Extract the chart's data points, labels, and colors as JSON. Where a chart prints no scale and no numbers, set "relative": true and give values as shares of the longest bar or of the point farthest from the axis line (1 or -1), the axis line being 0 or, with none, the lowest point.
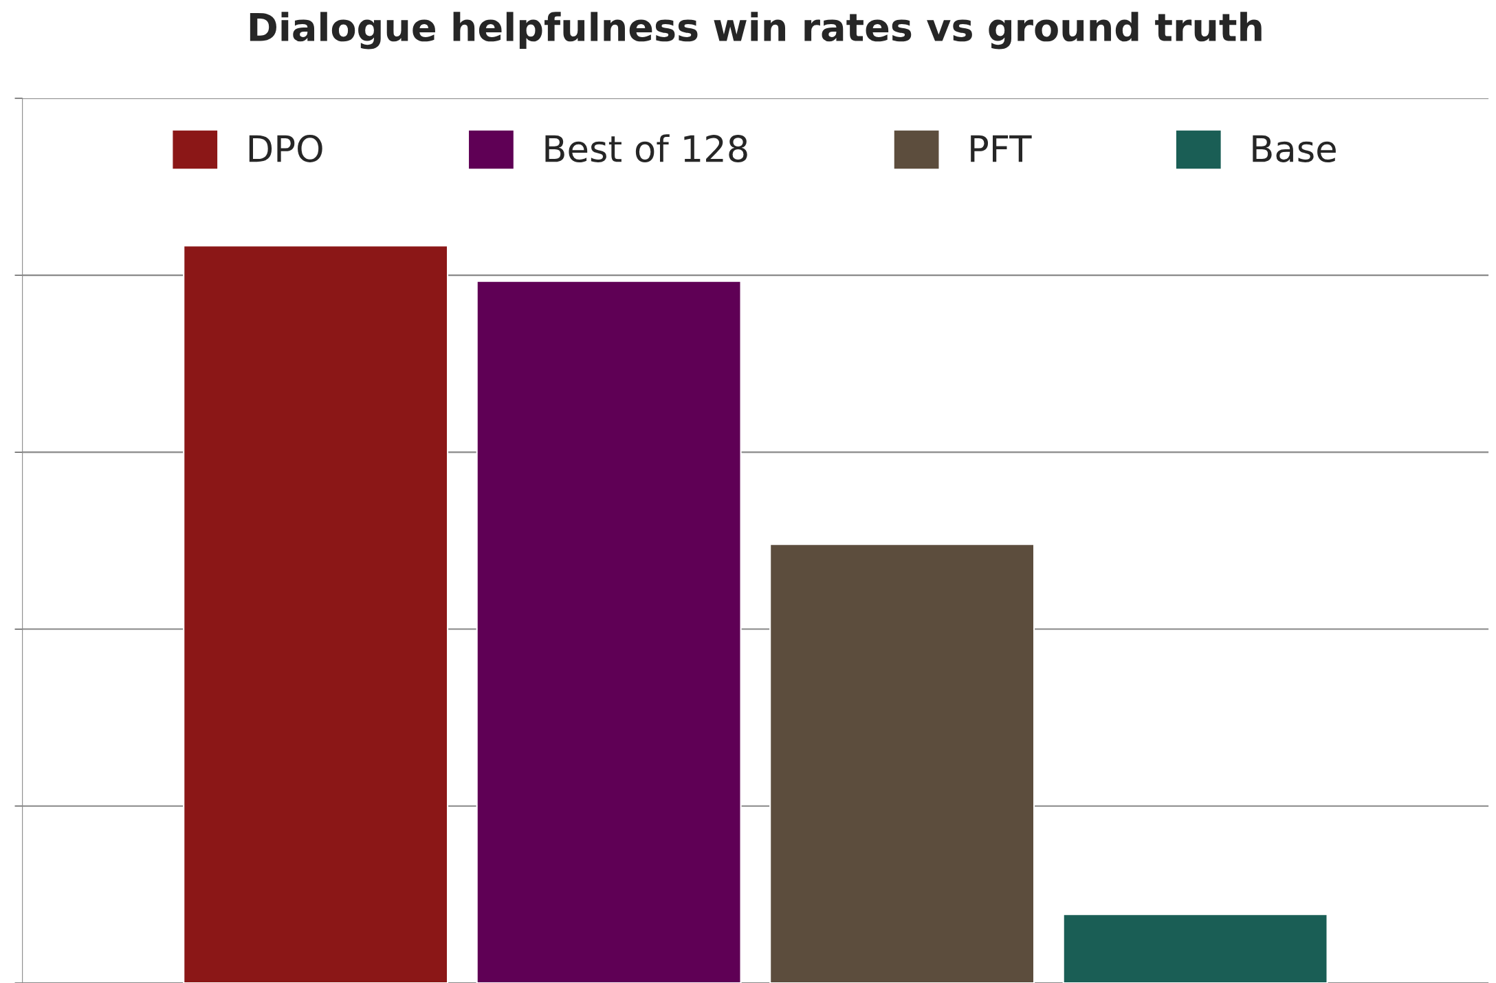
{
  "chart_data": {
    "type": "bar",
    "title": "Dialogue helpfulness win rates vs ground truth",
    "relative": true,
    "categories": [
      null
    ],
    "series": [
      {
        "name": "DPO",
        "color": "#8b1717",
        "values": [
          1
        ]
      },
      {
        "name": "Best of 128",
        "color": "#5f0055",
        "values": [
          0.952
        ]
      },
      {
        "name": "PFT",
        "color": "#5c4d3d",
        "values": [
          0.595
        ]
      },
      {
        "name": "Base",
        "color": "#1a5e55",
        "values": [
          0.093
        ]
      }
    ],
    "grid": "y",
    "legend": "top"
  }
}
